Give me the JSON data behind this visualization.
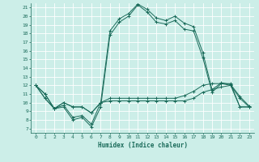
{
  "xlabel": "Humidex (Indice chaleur)",
  "bg_color": "#cceee8",
  "grid_color": "#ffffff",
  "line_color": "#1a6b5a",
  "xlim": [
    -0.5,
    23.5
  ],
  "ylim": [
    6.5,
    21.5
  ],
  "xticks": [
    0,
    1,
    2,
    3,
    4,
    5,
    6,
    7,
    8,
    9,
    10,
    11,
    12,
    13,
    14,
    15,
    16,
    17,
    18,
    19,
    20,
    21,
    22,
    23
  ],
  "yticks": [
    7,
    8,
    9,
    10,
    11,
    12,
    13,
    14,
    15,
    16,
    17,
    18,
    19,
    20,
    21
  ],
  "series": [
    [
      12,
      11,
      9.3,
      9.5,
      8.0,
      8.3,
      7.2,
      9.5,
      17.8,
      19.3,
      20.0,
      21.3,
      20.5,
      19.3,
      19.1,
      19.5,
      18.5,
      18.3,
      15.2,
      11.2,
      12.2,
      12.0,
      10.5,
      9.5
    ],
    [
      12,
      11,
      9.3,
      9.7,
      8.3,
      8.5,
      7.5,
      10.0,
      18.3,
      19.7,
      20.3,
      21.4,
      20.8,
      19.8,
      19.5,
      20.0,
      19.2,
      18.8,
      15.8,
      11.5,
      12.3,
      12.1,
      10.7,
      9.6
    ],
    [
      12,
      10.5,
      9.3,
      10.0,
      9.5,
      9.5,
      8.8,
      10.0,
      10.2,
      10.2,
      10.2,
      10.2,
      10.2,
      10.2,
      10.2,
      10.2,
      10.2,
      10.5,
      11.2,
      11.5,
      11.8,
      12.0,
      9.5,
      9.5
    ],
    [
      12,
      10.5,
      9.3,
      10.0,
      9.5,
      9.5,
      8.8,
      10.0,
      10.5,
      10.5,
      10.5,
      10.5,
      10.5,
      10.5,
      10.5,
      10.5,
      10.8,
      11.3,
      12.0,
      12.2,
      12.2,
      12.2,
      9.5,
      9.5
    ]
  ]
}
